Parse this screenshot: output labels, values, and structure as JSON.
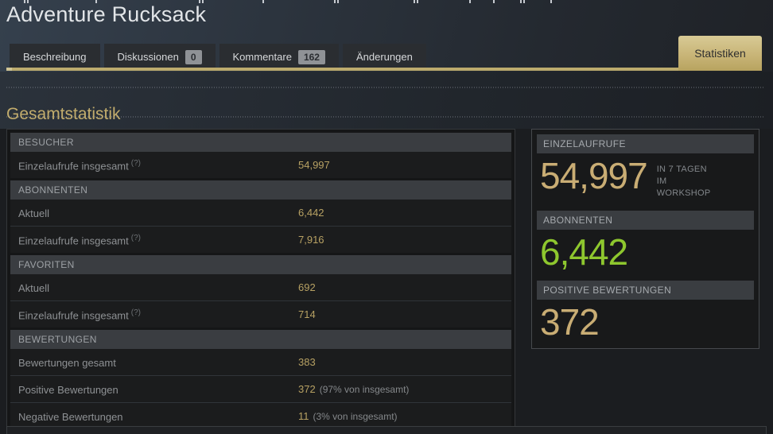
{
  "header": {
    "title": "Adventure Rucksack",
    "tabs": [
      {
        "label": "Beschreibung"
      },
      {
        "label": "Diskussionen",
        "badge": "0"
      },
      {
        "label": "Kommentare",
        "badge": "162"
      },
      {
        "label": "Änderungen"
      }
    ],
    "active_tab": "Statistiken"
  },
  "section_title": "Gesamtstatistik",
  "stats_table": {
    "sections": [
      {
        "header": "BESUCHER",
        "rows": [
          {
            "label": "Einzelaufrufe insgesamt",
            "help": "(?)",
            "value": "54,997"
          }
        ]
      },
      {
        "header": "ABONNENTEN",
        "rows": [
          {
            "label": "Aktuell",
            "value": "6,442"
          },
          {
            "label": "Einzelaufrufe insgesamt",
            "help": "(?)",
            "value": "7,916"
          }
        ]
      },
      {
        "header": "FAVORITEN",
        "rows": [
          {
            "label": "Aktuell",
            "value": "692"
          },
          {
            "label": "Einzelaufrufe insgesamt",
            "help": "(?)",
            "value": "714"
          }
        ]
      },
      {
        "header": "BEWERTUNGEN",
        "rows": [
          {
            "label": "Bewertungen gesamt",
            "value": "383"
          },
          {
            "label": "Positive Bewertungen",
            "value": "372",
            "note": "(97% von insgesamt)"
          },
          {
            "label": "Negative Bewertungen",
            "value": "11",
            "note": "(3% von insgesamt)"
          }
        ]
      }
    ]
  },
  "summary_panel": {
    "cards": [
      {
        "header": "EINZELAUFRUFE",
        "value": "54,997",
        "caption_lines": [
          "IN 7 TAGEN",
          "IM",
          "WORKSHOP"
        ],
        "color": "#c9ad74"
      },
      {
        "header": "ABONNENTEN",
        "value": "6,442",
        "caption_lines": [],
        "color": "#8ec72e"
      },
      {
        "header": "POSITIVE BEWERTUNGEN",
        "value": "372",
        "caption_lines": [],
        "color": "#c9ad74"
      }
    ]
  },
  "colors": {
    "accent_gold": "#b7a163",
    "big_number_tan": "#c9ad74",
    "big_number_green": "#8ec72e",
    "tab_underline": "#bcab6d"
  }
}
